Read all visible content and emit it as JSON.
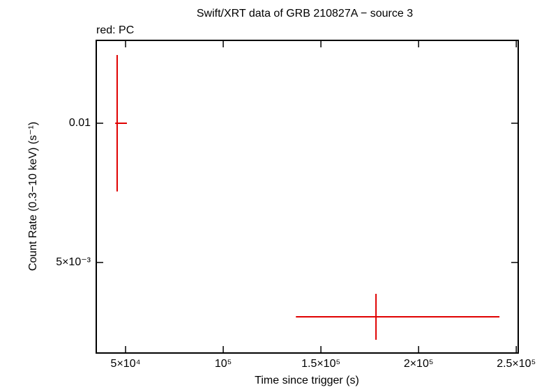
{
  "chart_data": {
    "type": "errorbar",
    "title": "Swift/XRT data of GRB 210827A − source 3",
    "subtitle": "red: PC",
    "x_label": "Time since trigger (s)",
    "y_label": "Count Rate (0.3−10 keV) (s⁻¹)",
    "color": "#e00000",
    "x": [
      45700,
      178200
    ],
    "xerr_minus": [
      1000,
      41000
    ],
    "xerr_plus": [
      5000,
      63200
    ],
    "values": [
      0.01,
      0.00305
    ],
    "yerr": [
      0.00245,
      0.000825
    ],
    "xlim": [
      35000,
      251000
    ],
    "ylim": [
      0.00175,
      0.012975
    ],
    "xticks": [
      {
        "value": 50000,
        "label": "5×10⁴"
      },
      {
        "value": 100000,
        "label": "10⁵"
      },
      {
        "value": 150000,
        "label": "1.5×10⁵"
      },
      {
        "value": 200000,
        "label": "2×10⁵"
      },
      {
        "value": 250000,
        "label": "2.5×10⁵"
      }
    ],
    "yticks": [
      {
        "value": 0.005,
        "label": "5×10⁻³"
      },
      {
        "value": 0.01,
        "label": "0.01"
      }
    ]
  }
}
